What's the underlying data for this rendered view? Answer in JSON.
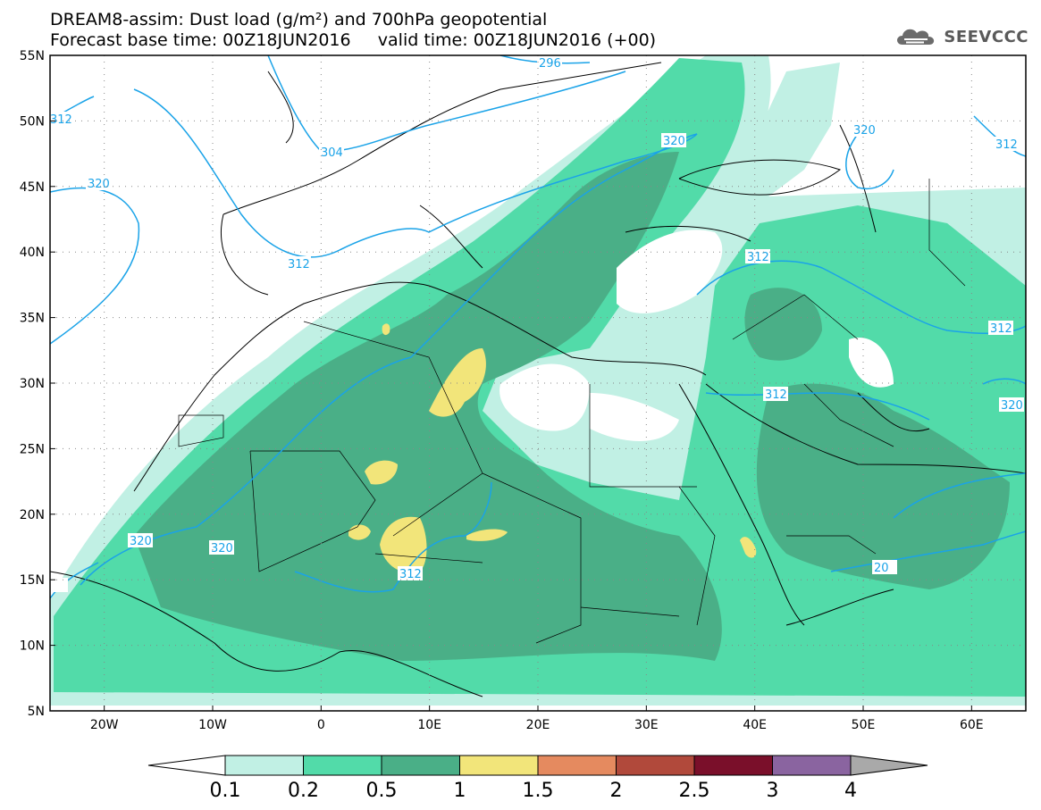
{
  "title": {
    "line1": "DREAM8-assim: Dust load (g/m²) and 700hPa geopotential",
    "line2": "Forecast base time: 00Z18JUN2016     valid time: 00Z18JUN2016 (+00)"
  },
  "brand": {
    "name": "SEEVCCC",
    "icon": "cloud-logo-icon"
  },
  "axes": {
    "lat_labels": [
      "55N",
      "50N",
      "45N",
      "40N",
      "35N",
      "30N",
      "25N",
      "20N",
      "15N",
      "10N",
      "5N"
    ],
    "lon_labels": [
      "20W",
      "10W",
      "0",
      "10E",
      "20E",
      "30E",
      "40E",
      "50E",
      "60E"
    ],
    "lat_range": [
      5,
      55
    ],
    "lon_range": [
      -25,
      65
    ],
    "grid": "dotted"
  },
  "contour_labels": [
    "312",
    "296",
    "304",
    "320",
    "312",
    "320",
    "312",
    "320",
    "312",
    "312",
    "312",
    "320",
    "320",
    "320",
    "312",
    "20"
  ],
  "colorbar": {
    "labels": [
      "0.1",
      "0.2",
      "0.5",
      "1",
      "1.5",
      "2",
      "2.5",
      "3",
      "4"
    ],
    "colors": [
      "#c1f0e4",
      "#52dba9",
      "#4aaf87",
      "#f2e57a",
      "#e58a5f",
      "#b1493b",
      "#7a0f2a",
      "#8a64a0"
    ],
    "under_color": "#ffffff",
    "over_color": "#a9a9a9"
  }
}
